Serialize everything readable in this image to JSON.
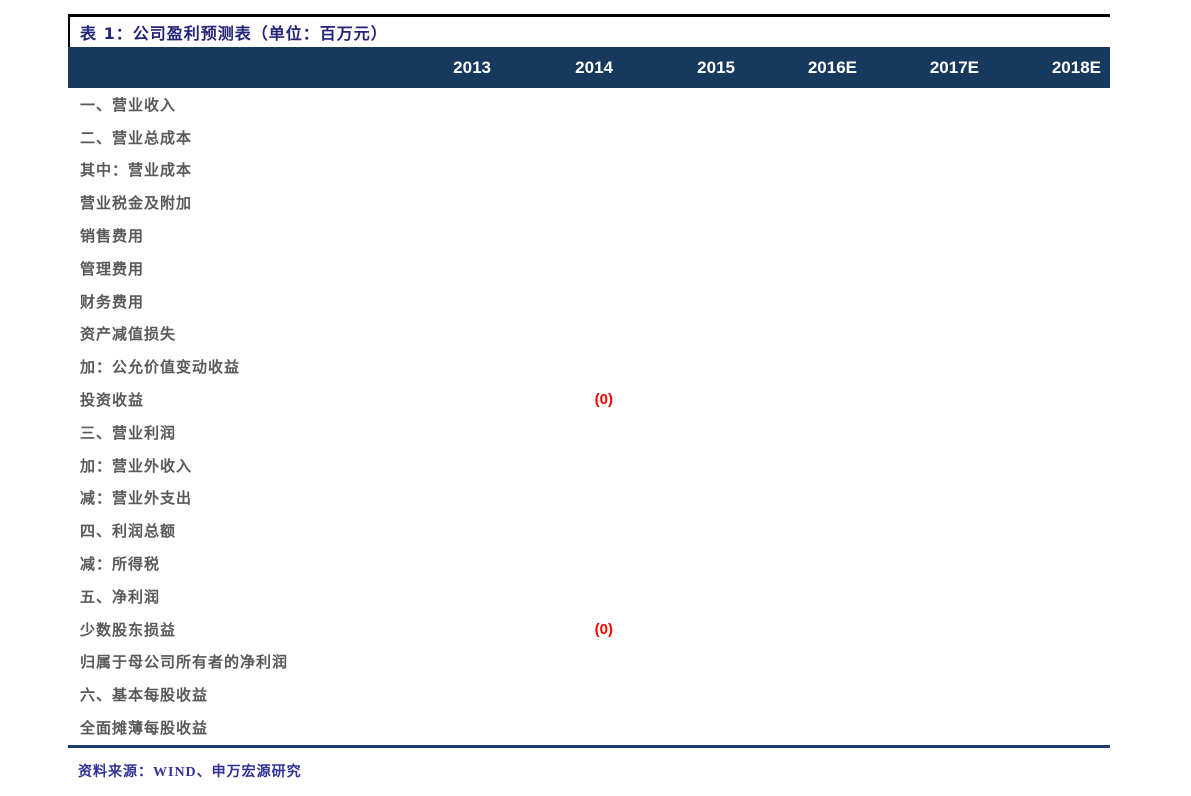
{
  "table": {
    "title": "表 1：公司盈利预测表（单位：百万元）",
    "columns": [
      "2013",
      "2014",
      "2015",
      "2016E",
      "2017E",
      "2018E"
    ],
    "rows": [
      {
        "label": "一、营业收入",
        "values": [
          "",
          "",
          "",
          "",
          "",
          ""
        ]
      },
      {
        "label": "二、营业总成本",
        "values": [
          "",
          "",
          "",
          "",
          "",
          ""
        ]
      },
      {
        "label": "其中：营业成本",
        "values": [
          "",
          "",
          "",
          "",
          "",
          ""
        ]
      },
      {
        "label": "营业税金及附加",
        "values": [
          "",
          "",
          "",
          "",
          "",
          ""
        ]
      },
      {
        "label": "销售费用",
        "values": [
          "",
          "",
          "",
          "",
          "",
          ""
        ]
      },
      {
        "label": "管理费用",
        "values": [
          "",
          "",
          "",
          "",
          "",
          ""
        ]
      },
      {
        "label": "财务费用",
        "values": [
          "",
          "",
          "",
          "",
          "",
          ""
        ]
      },
      {
        "label": "资产减值损失",
        "values": [
          "",
          "",
          "",
          "",
          "",
          ""
        ]
      },
      {
        "label": "加：公允价值变动收益",
        "values": [
          "",
          "",
          "",
          "",
          "",
          ""
        ]
      },
      {
        "label": "投资收益",
        "values": [
          "",
          "(0)",
          "",
          "",
          "",
          ""
        ]
      },
      {
        "label": "三、营业利润",
        "values": [
          "",
          "",
          "",
          "",
          "",
          ""
        ]
      },
      {
        "label": "加：营业外收入",
        "values": [
          "",
          "",
          "",
          "",
          "",
          ""
        ]
      },
      {
        "label": "减：营业外支出",
        "values": [
          "",
          "",
          "",
          "",
          "",
          ""
        ]
      },
      {
        "label": "四、利润总额",
        "values": [
          "",
          "",
          "",
          "",
          "",
          ""
        ]
      },
      {
        "label": "减：所得税",
        "values": [
          "",
          "",
          "",
          "",
          "",
          ""
        ]
      },
      {
        "label": "五、净利润",
        "values": [
          "",
          "",
          "",
          "",
          "",
          ""
        ]
      },
      {
        "label": "少数股东损益",
        "values": [
          "",
          "(0)",
          "",
          "",
          "",
          ""
        ]
      },
      {
        "label": "归属于母公司所有者的净利润",
        "values": [
          "",
          "",
          "",
          "",
          "",
          ""
        ]
      },
      {
        "label": "六、基本每股收益",
        "values": [
          "",
          "",
          "",
          "",
          "",
          ""
        ]
      },
      {
        "label": "全面摊薄每股收益",
        "values": [
          "",
          "",
          "",
          "",
          "",
          ""
        ]
      }
    ],
    "source": "资料来源：WIND、申万宏源研究"
  },
  "colors": {
    "header_bg": "#17395E",
    "title_text": "#232378",
    "row_text": "#595959",
    "negative_value": "#FF0000",
    "source_text": "#333399",
    "rule": "#1B3C6E",
    "frame_border": "#000000"
  }
}
